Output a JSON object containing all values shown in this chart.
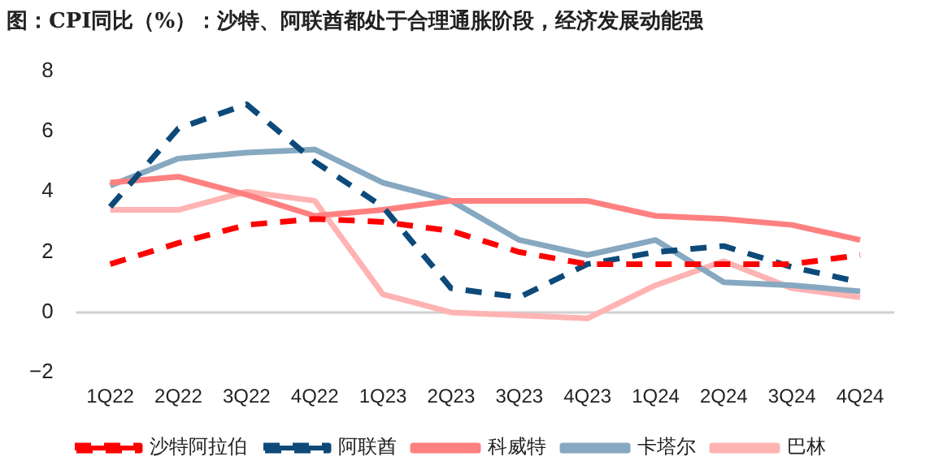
{
  "chart_data": {
    "type": "line",
    "title": "图：CPI同比（%）：沙特、阿联酋都处于合理通胀阶段，经济发展动能强",
    "categories": [
      "1Q22",
      "2Q22",
      "3Q22",
      "4Q22",
      "1Q23",
      "2Q23",
      "3Q23",
      "4Q23",
      "1Q24",
      "2Q24",
      "3Q24",
      "4Q24"
    ],
    "series": [
      {
        "name": "沙特阿拉伯",
        "color": "#ff0000",
        "line_style": "dashed",
        "values": [
          1.6,
          2.3,
          2.9,
          3.1,
          3.0,
          2.7,
          2.0,
          1.6,
          1.6,
          1.6,
          1.6,
          1.9
        ]
      },
      {
        "name": "阿联酋",
        "color": "#0d4a7a",
        "line_style": "dashed",
        "values": [
          3.5,
          6.1,
          6.9,
          5.0,
          3.5,
          0.8,
          0.5,
          1.6,
          2.0,
          2.2,
          1.5,
          1.0
        ]
      },
      {
        "name": "科威特",
        "color": "#ff8080",
        "line_style": "solid",
        "values": [
          4.3,
          4.5,
          3.9,
          3.2,
          3.4,
          3.7,
          3.7,
          3.7,
          3.2,
          3.1,
          2.9,
          2.4
        ]
      },
      {
        "name": "卡塔尔",
        "color": "#86a8c0",
        "line_style": "solid",
        "values": [
          4.2,
          5.1,
          5.3,
          5.4,
          4.3,
          3.7,
          2.4,
          1.9,
          2.4,
          1.0,
          0.9,
          0.7
        ]
      },
      {
        "name": "巴林",
        "color": "#ffb3b3",
        "line_style": "solid",
        "values": [
          3.4,
          3.4,
          4.0,
          3.7,
          0.6,
          0.0,
          -0.1,
          -0.2,
          0.9,
          1.7,
          0.8,
          0.5
        ]
      }
    ],
    "ref_lines": [
      {
        "axis": "y",
        "value": 0,
        "color": "#d0d0d0"
      }
    ],
    "ylim": [
      -2,
      8
    ],
    "yticks": [
      -2,
      0,
      2,
      4,
      6,
      8
    ],
    "grid": false,
    "legend": "bottom",
    "marker": "none"
  }
}
